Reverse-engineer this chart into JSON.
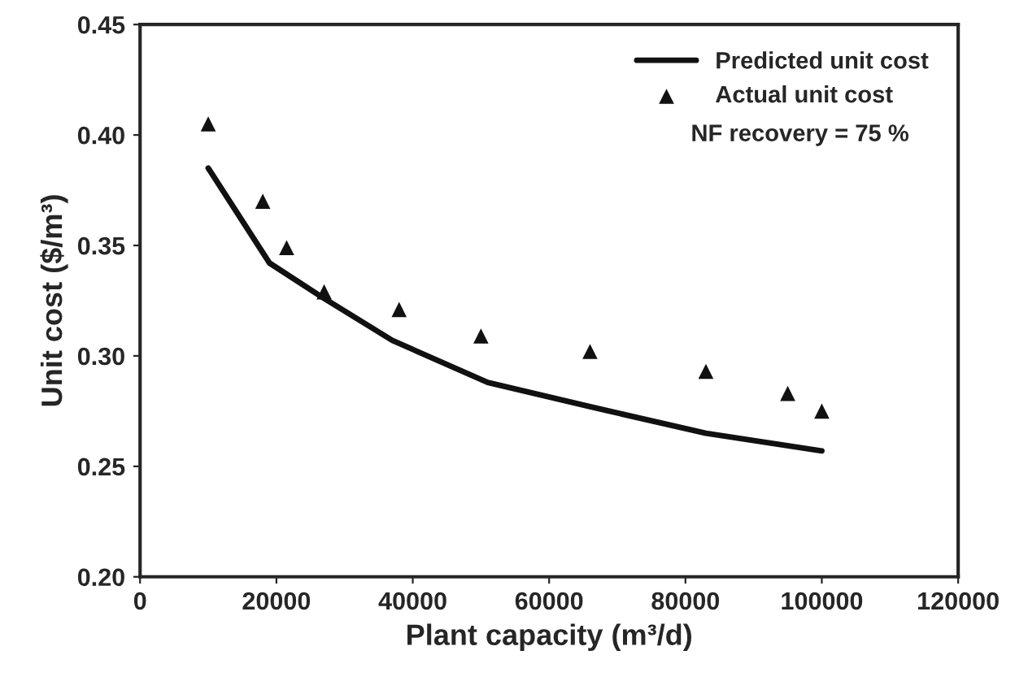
{
  "chart_data": {
    "type": "line",
    "xlabel": "Plant capacity (m³/d)",
    "ylabel": "Unit cost ($/m³)",
    "xlim": [
      0,
      120000
    ],
    "xticks": [
      0,
      20000,
      40000,
      60000,
      80000,
      100000,
      120000
    ],
    "ylim": [
      0.2,
      0.45
    ],
    "yticks": [
      {
        "value": 0.2,
        "label": "0.20"
      },
      {
        "value": 0.25,
        "label": "0.25"
      },
      {
        "value": 0.3,
        "label": "0.30"
      },
      {
        "value": 0.35,
        "label": "0.35"
      },
      {
        "value": 0.4,
        "label": "0.40"
      },
      {
        "value": 0.45,
        "label": "0.45"
      }
    ],
    "grid": false,
    "legend": "top right",
    "annotations": [
      "NF recovery = 75 %"
    ],
    "series": [
      {
        "name": "Predicted unit cost",
        "color": "#111111",
        "marker": "none",
        "line_style": "solid",
        "x": [
          10000,
          19000,
          26500,
          37000,
          51000,
          66000,
          83000,
          100000
        ],
        "values": [
          0.385,
          0.342,
          0.327,
          0.307,
          0.288,
          0.277,
          0.265,
          0.257
        ]
      },
      {
        "name": "Actual unit cost",
        "type": "scatter",
        "color": "#111111",
        "marker": "triangle",
        "x": [
          10000,
          18000,
          21500,
          27000,
          38000,
          50000,
          66000,
          83000,
          95000,
          100000
        ],
        "values": [
          0.405,
          0.37,
          0.349,
          0.329,
          0.321,
          0.309,
          0.302,
          0.293,
          0.283,
          0.275
        ]
      }
    ]
  }
}
